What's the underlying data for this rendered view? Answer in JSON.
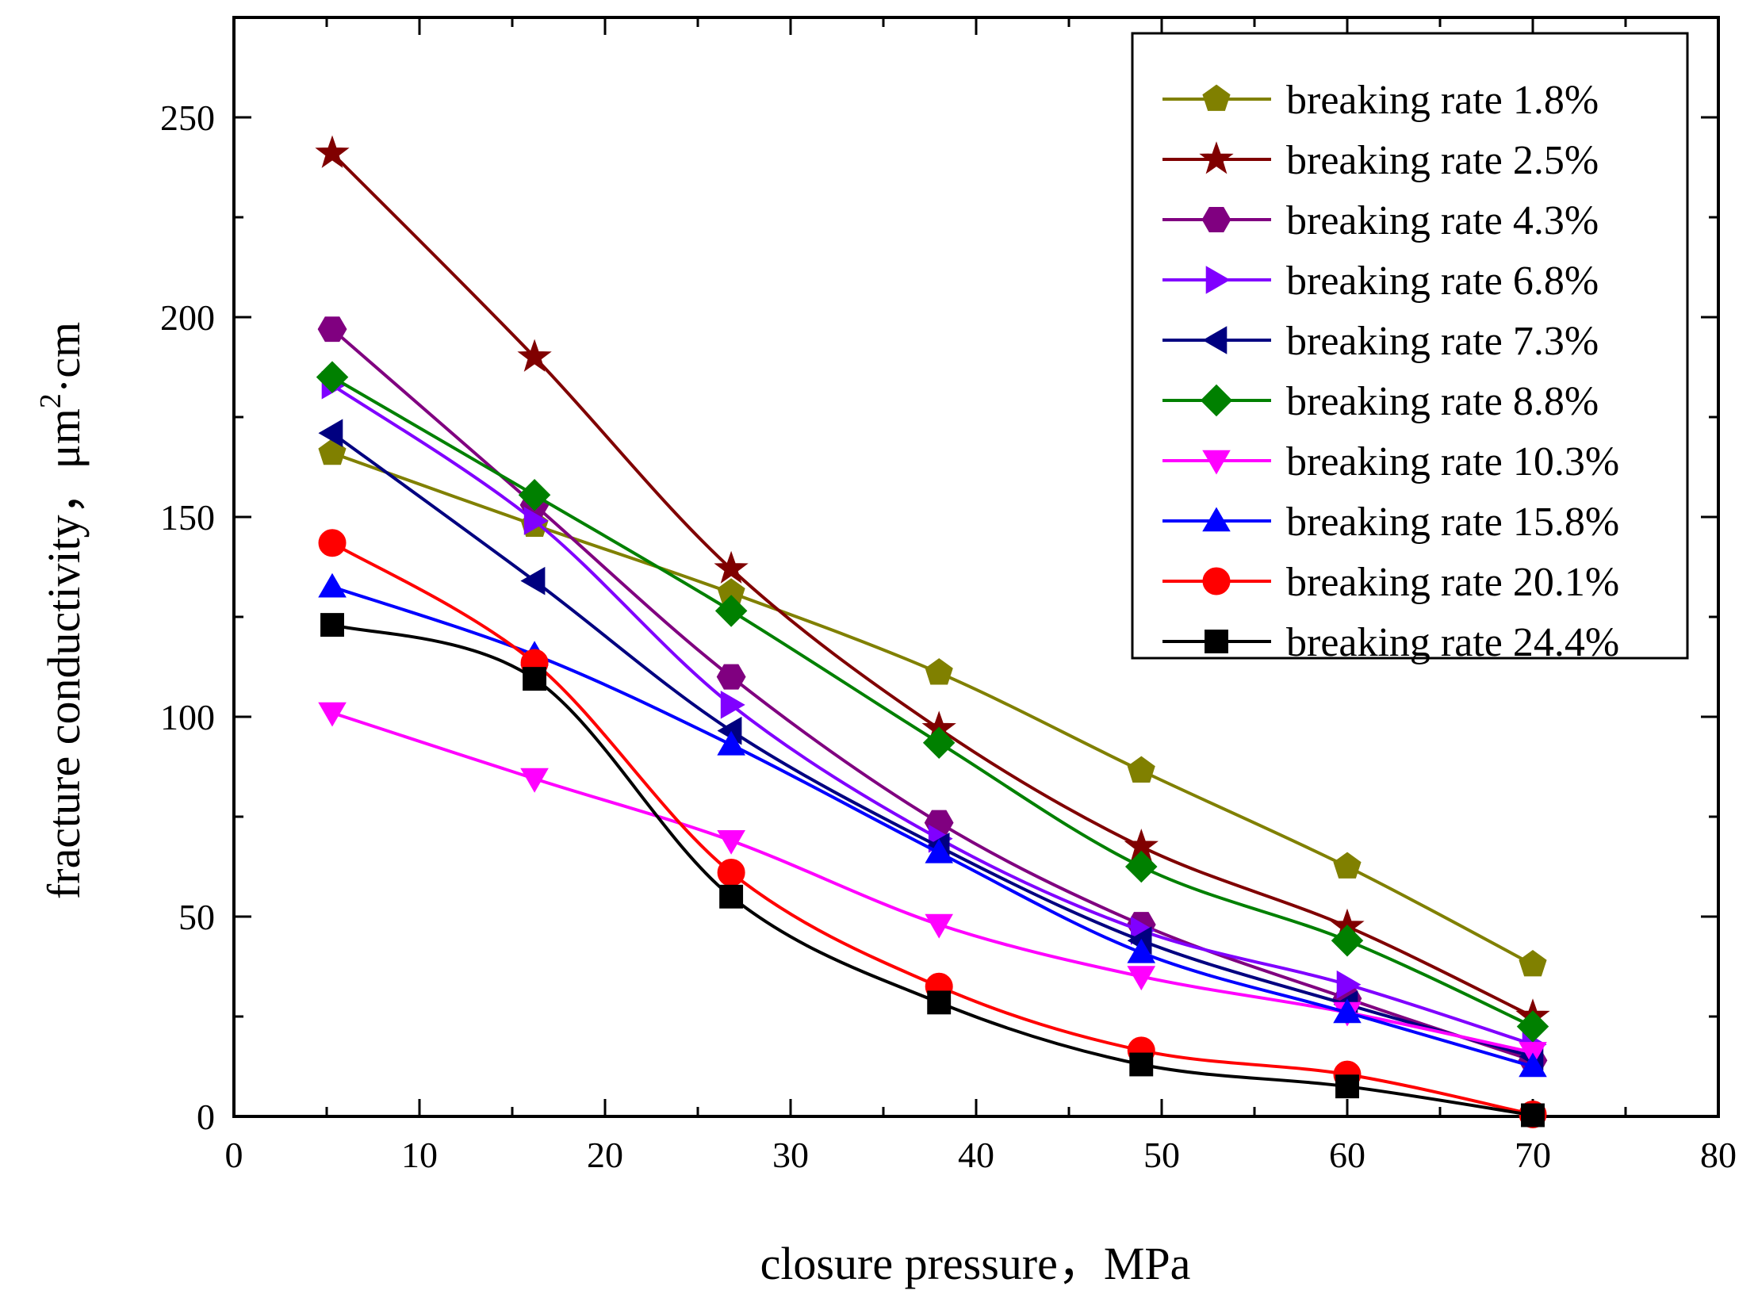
{
  "chart_data": {
    "type": "line",
    "title": "",
    "xlabel": "closure pressure，MPa",
    "ylabel_main": "fracture conductivity，μm",
    "ylabel_sup": "2",
    "ylabel_tail": "·cm",
    "xlim": [
      0,
      80
    ],
    "ylim": [
      0,
      275
    ],
    "x_ticks": [
      0,
      10,
      20,
      30,
      40,
      50,
      60,
      70,
      80
    ],
    "y_ticks": [
      0,
      50,
      100,
      150,
      200,
      250
    ],
    "x_tick_labels": [
      "0",
      "10",
      "20",
      "30",
      "40",
      "50",
      "60",
      "70",
      "80"
    ],
    "y_tick_labels": [
      "0",
      "50",
      "100",
      "150",
      "200",
      "250"
    ],
    "x": [
      5.3,
      16.2,
      26.8,
      38.0,
      48.9,
      60.0,
      70.0
    ],
    "legend_position": "top-right",
    "series": [
      {
        "name": "breaking rate 1.8%",
        "color": "#808000",
        "marker": "pentagon",
        "values": [
          166,
          148,
          131,
          111,
          86.5,
          62.5,
          38
        ]
      },
      {
        "name": "breaking rate 2.5%",
        "color": "#800000",
        "marker": "star",
        "values": [
          241,
          190,
          137,
          97,
          67.5,
          47.5,
          25
        ]
      },
      {
        "name": "breaking rate 4.3%",
        "color": "#800080",
        "marker": "hexagon",
        "values": [
          197,
          153,
          110,
          73.5,
          48,
          29.5,
          14
        ]
      },
      {
        "name": "breaking rate 6.8%",
        "color": "#8000ff",
        "marker": "triangle-right",
        "values": [
          183,
          149,
          103,
          69.5,
          46.5,
          33,
          18
        ]
      },
      {
        "name": "breaking rate 7.3%",
        "color": "#000080",
        "marker": "triangle-left",
        "values": [
          171,
          134,
          96.5,
          67.5,
          44,
          28,
          15
        ]
      },
      {
        "name": "breaking rate 8.8%",
        "color": "#008000",
        "marker": "diamond",
        "values": [
          185,
          155.5,
          126.5,
          93.5,
          62.5,
          44,
          22.5
        ]
      },
      {
        "name": "breaking rate 10.3%",
        "color": "#ff00ff",
        "marker": "triangle-down",
        "values": [
          101,
          84.5,
          69,
          48,
          35,
          26,
          16
        ]
      },
      {
        "name": "breaking rate 15.8%",
        "color": "#0000ff",
        "marker": "triangle-up",
        "values": [
          132.5,
          115.5,
          93,
          66,
          41,
          26,
          12.5
        ]
      },
      {
        "name": "breaking rate 20.1%",
        "color": "#ff0000",
        "marker": "circle",
        "values": [
          143.5,
          113.5,
          61,
          32.5,
          16.5,
          10.5,
          0.5
        ]
      },
      {
        "name": "breaking rate 24.4%",
        "color": "#000000",
        "marker": "square",
        "values": [
          123,
          109.5,
          55,
          28.5,
          13,
          7.5,
          0.3
        ]
      }
    ]
  }
}
